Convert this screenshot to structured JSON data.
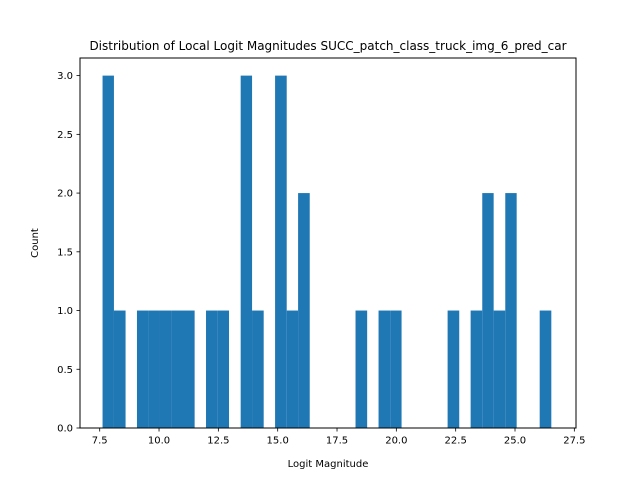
{
  "chart_data": {
    "type": "bar",
    "title": "Distribution of Local Logit Magnitudes SUCC_patch_class_truck_img_6_pred_car",
    "xlabel": "Logit Magnitude",
    "ylabel": "Count",
    "xlim": [
      6.67,
      27.57
    ],
    "ylim": [
      0,
      3.15
    ],
    "x_ticks": [
      7.5,
      10.0,
      12.5,
      15.0,
      17.5,
      20.0,
      22.5,
      25.0,
      27.5
    ],
    "x_tick_labels": [
      "7.5",
      "10.0",
      "12.5",
      "15.0",
      "17.5",
      "20.0",
      "22.5",
      "25.0",
      "27.5"
    ],
    "y_ticks": [
      0.0,
      0.5,
      1.0,
      1.5,
      2.0,
      2.5,
      3.0
    ],
    "y_tick_labels": [
      "0.0",
      "0.5",
      "1.0",
      "1.5",
      "2.0",
      "2.5",
      "3.0"
    ],
    "grid": false,
    "bin_edges": [
      7.62,
      8.1,
      8.59,
      9.07,
      9.56,
      10.04,
      10.53,
      11.01,
      11.5,
      11.98,
      12.47,
      12.95,
      13.44,
      13.92,
      14.41,
      14.89,
      15.38,
      15.86,
      16.35,
      16.83,
      17.32,
      17.8,
      18.28,
      18.77,
      19.25,
      19.74,
      20.22,
      20.71,
      21.19,
      21.68,
      22.16,
      22.65,
      23.13,
      23.62,
      24.1,
      24.59,
      25.07,
      25.56,
      26.04,
      26.53,
      27.01
    ],
    "values": [
      3,
      1,
      0,
      1,
      1,
      1,
      1,
      1,
      0,
      1,
      1,
      0,
      3,
      1,
      0,
      3,
      1,
      2,
      0,
      0,
      0,
      0,
      1,
      0,
      1,
      1,
      0,
      0,
      0,
      0,
      1,
      0,
      1,
      2,
      1,
      2,
      0,
      0,
      1,
      0
    ],
    "bar_color": "#1f77b4"
  }
}
